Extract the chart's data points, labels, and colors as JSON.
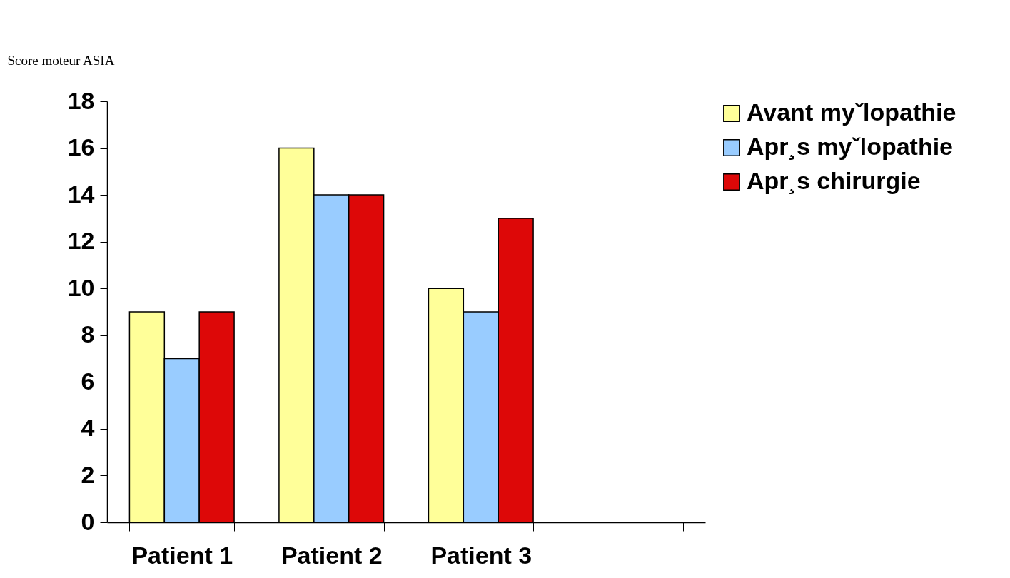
{
  "chart_data": {
    "type": "bar",
    "ylabel": "Score moteur ASIA",
    "categories": [
      "Patient 1",
      "Patient 2",
      "Patient 3",
      null
    ],
    "series": [
      {
        "name": "Avant myˇlopathie",
        "color": "#ffff99",
        "values": [
          9,
          16,
          10,
          null
        ]
      },
      {
        "name": "Apr¸s myˇlopathie",
        "color": "#99ccff",
        "values": [
          7,
          14,
          9,
          null
        ]
      },
      {
        "name": "Apr¸s chirurgie",
        "color": "#dd0808",
        "values": [
          9,
          14,
          13,
          null
        ]
      }
    ],
    "ylim": [
      0,
      18
    ],
    "yticks": [
      0,
      2,
      4,
      6,
      8,
      10,
      12,
      14,
      16,
      18
    ],
    "grid": false,
    "legend": "right"
  }
}
